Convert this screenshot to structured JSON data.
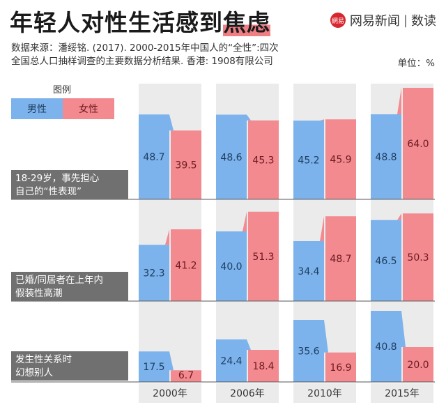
{
  "header": {
    "title_main": "年轻人对性生活感到",
    "title_highlight": "焦虑",
    "brand_name": "网易新闻",
    "brand_section": "数读",
    "logo_text": "網易"
  },
  "source": {
    "line1": "数据来源：潘绥铭. (2017). 2000-2015年中国人的“全性”:四次",
    "line2": "全国总人口抽样调查的主要数据分析结果. 香港: 1908有限公司"
  },
  "unit_label": "单位：%",
  "legend": {
    "title": "图例",
    "male": "男性",
    "female": "女性"
  },
  "colors": {
    "male": "#7cb3ec",
    "male_top": "#a9cdf3",
    "female": "#f28a90",
    "female_top": "#f7b2b6",
    "panel_bg": "#ebebeb",
    "label_bg": "#707070"
  },
  "chart_data": {
    "type": "bar",
    "categories": [
      "2000年",
      "2006年",
      "2010年",
      "2015年"
    ],
    "series_names": [
      "男性",
      "女性"
    ],
    "groups": [
      {
        "label_lines": [
          "18-29岁，事先担心",
          "自己的“性表现”"
        ],
        "male": [
          48.7,
          48.6,
          45.2,
          48.8
        ],
        "female": [
          39.5,
          45.3,
          45.9,
          64.0
        ],
        "male_labels": [
          "48.7",
          "48.6",
          "45.2",
          "48.8"
        ],
        "female_labels": [
          "39.5",
          "45.3",
          "45.9",
          "64.0"
        ]
      },
      {
        "label_lines": [
          "已婚/同居者在上年内",
          "假装性高潮"
        ],
        "male": [
          32.3,
          40.0,
          34.4,
          46.5
        ],
        "female": [
          41.2,
          51.3,
          48.7,
          50.3
        ],
        "male_labels": [
          "32.3",
          "40.0",
          "34.4",
          "46.5"
        ],
        "female_labels": [
          "41.2",
          "51.3",
          "48.7",
          "50.3"
        ]
      },
      {
        "label_lines": [
          "发生性关系时",
          "幻想别人"
        ],
        "male": [
          17.5,
          24.4,
          35.6,
          40.8
        ],
        "female": [
          6.7,
          18.4,
          16.9,
          20.0
        ],
        "male_labels": [
          "17.5",
          "24.4",
          "35.6",
          "40.8"
        ],
        "female_labels": [
          "6.7",
          "18.4",
          "16.9",
          "20.0"
        ]
      }
    ]
  }
}
